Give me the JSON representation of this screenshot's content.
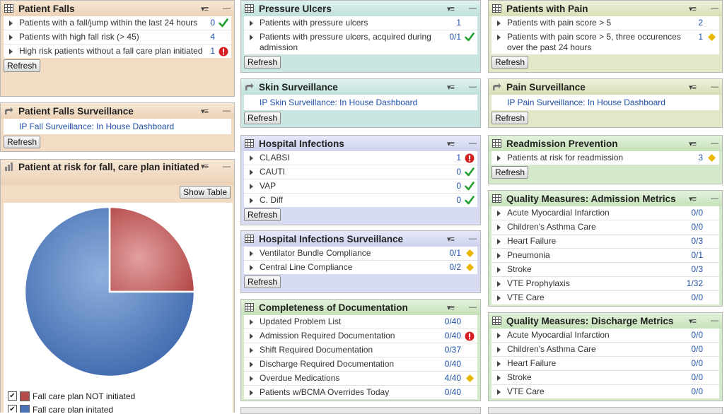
{
  "col1": {
    "falls": {
      "title": "Patient Falls",
      "rows": [
        {
          "label": "Patients with a fall/jump within the last 24 hours",
          "value": "0",
          "status": "ok"
        },
        {
          "label": "Patients with high fall risk (> 45)",
          "value": "4",
          "status": ""
        },
        {
          "label": "High risk patients without a fall care plan initiated",
          "value": "1",
          "status": "alert"
        }
      ],
      "refresh": "Refresh"
    },
    "falls_surv": {
      "title": "Patient Falls Surveillance",
      "link": "IP Fall Surveillance: In House Dashboard",
      "refresh": "Refresh"
    },
    "risk_chart": {
      "title": "Patient at risk for fall, care plan initiated",
      "show_table": "Show Table",
      "legend": [
        {
          "label": "Fall care plan NOT initiated",
          "color": "#b44c4c",
          "checked": true
        },
        {
          "label": "Fall care plan initated",
          "color": "#4a73b5",
          "checked": true
        }
      ]
    }
  },
  "chart_data": {
    "type": "pie",
    "title": "Patient at risk for fall, care plan initiated",
    "categories": [
      "Fall care plan NOT initiated",
      "Fall care plan initated"
    ],
    "values": [
      1,
      3
    ]
  },
  "col2": {
    "ulcers": {
      "title": "Pressure Ulcers",
      "rows": [
        {
          "label": "Patients with pressure ulcers",
          "value": "1",
          "status": ""
        },
        {
          "label": "Patients with pressure ulcers, acquired during admission",
          "value": "0/1",
          "status": "ok"
        }
      ],
      "refresh": "Refresh"
    },
    "skin_surv": {
      "title": "Skin Surveillance",
      "link": "IP Skin Surveillance: In House Dashboard",
      "refresh": "Refresh"
    },
    "infections": {
      "title": "Hospital Infections",
      "rows": [
        {
          "label": "CLABSI",
          "value": "1",
          "status": "alert"
        },
        {
          "label": "CAUTI",
          "value": "0",
          "status": "ok"
        },
        {
          "label": "VAP",
          "value": "0",
          "status": "ok"
        },
        {
          "label": "C. Diff",
          "value": "0",
          "status": "ok"
        }
      ],
      "refresh": "Refresh"
    },
    "inf_surv": {
      "title": "Hospital Infections Surveillance",
      "rows": [
        {
          "label": "Ventilator Bundle Compliance",
          "value": "0/1",
          "status": "warn"
        },
        {
          "label": "Central Line Compliance",
          "value": "0/2",
          "status": "warn"
        }
      ],
      "refresh": "Refresh"
    },
    "documentation": {
      "title": "Completeness of Documentation",
      "rows": [
        {
          "label": "Updated Problem List",
          "value": "0/40",
          "status": ""
        },
        {
          "label": "Admission Required Documentation",
          "value": "0/40",
          "status": "alert"
        },
        {
          "label": "Shift Required Documentation",
          "value": "0/37",
          "status": ""
        },
        {
          "label": "Discharge Required Documentation",
          "value": "0/40",
          "status": ""
        },
        {
          "label": "Overdue Medications",
          "value": "4/40",
          "status": "warn"
        },
        {
          "label": "Patients w/BCMA Overrides Today",
          "value": "0/40",
          "status": ""
        }
      ]
    }
  },
  "col3": {
    "pain": {
      "title": "Patients with Pain",
      "rows": [
        {
          "label": "Patients with pain score > 5",
          "value": "2",
          "status": ""
        },
        {
          "label": "Patients with pain score > 5, three occurences over the past 24 hours",
          "value": "1",
          "status": "warn"
        }
      ],
      "refresh": "Refresh"
    },
    "pain_surv": {
      "title": "Pain Surveillance",
      "link": "IP Pain Surveillance: In House Dashboard",
      "refresh": "Refresh"
    },
    "readmission": {
      "title": "Readmission Prevention",
      "rows": [
        {
          "label": "Patients at risk for readmission",
          "value": "3",
          "status": "warn"
        }
      ],
      "refresh": "Refresh"
    },
    "admission_metrics": {
      "title": "Quality Measures: Admission Metrics",
      "rows": [
        {
          "label": "Acute Myocardial Infarction",
          "value": "0/0",
          "status": ""
        },
        {
          "label": "Children's Asthma Care",
          "value": "0/0",
          "status": ""
        },
        {
          "label": "Heart Failure",
          "value": "0/3",
          "status": ""
        },
        {
          "label": "Pneumonia",
          "value": "0/1",
          "status": ""
        },
        {
          "label": "Stroke",
          "value": "0/3",
          "status": ""
        },
        {
          "label": "VTE Prophylaxis",
          "value": "1/32",
          "status": ""
        },
        {
          "label": "VTE Care",
          "value": "0/0",
          "status": ""
        }
      ]
    },
    "discharge_metrics": {
      "title": "Quality Measures: Discharge Metrics",
      "rows": [
        {
          "label": "Acute Myocardial Infarction",
          "value": "0/0",
          "status": ""
        },
        {
          "label": "Children's Asthma Care",
          "value": "0/0",
          "status": ""
        },
        {
          "label": "Heart Failure",
          "value": "0/0",
          "status": ""
        },
        {
          "label": "Stroke",
          "value": "0/0",
          "status": ""
        },
        {
          "label": "VTE Care",
          "value": "0/0",
          "status": ""
        }
      ]
    }
  },
  "icons": {
    "grid": "table-grid-icon",
    "link": "shortcut-arrow-icon",
    "chart": "bar-chart-icon",
    "menu": "panel-menu-icon",
    "minimize": "minimize-icon"
  },
  "colors": {
    "ok": "#1f9e2e",
    "alert": "#d42020",
    "warn": "#e8b800",
    "value": "#1f4fa8"
  }
}
